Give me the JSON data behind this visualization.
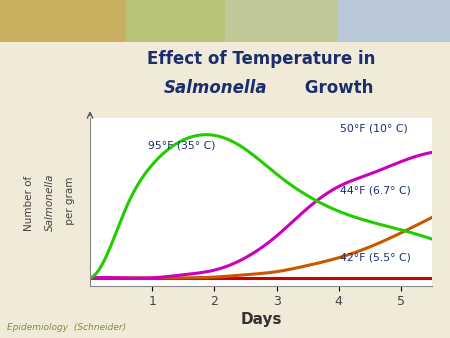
{
  "title_line1": "Effect of Temperature in",
  "title_line2_italic": "Salmonella",
  "title_line2_normal": " Growth",
  "xlabel": "Days",
  "background_color": "#f2ead8",
  "plot_bg": "#ffffff",
  "xticks": [
    1,
    2,
    3,
    4,
    5
  ],
  "labels": {
    "95F": "95°F (35° C)",
    "50F": "50°F (10° C)",
    "44F": "44°F (6.7° C)",
    "42F": "42°F (5.5° C)"
  },
  "label_color": "#1a2e6e",
  "curves": {
    "95F": {
      "color": "#22cc00",
      "x": [
        0.0,
        0.25,
        0.6,
        1.0,
        1.5,
        2.0,
        2.5,
        3.0,
        3.5,
        4.0,
        5.0,
        5.5
      ],
      "y": [
        0.05,
        0.18,
        0.52,
        0.78,
        0.94,
        0.97,
        0.88,
        0.72,
        0.58,
        0.48,
        0.36,
        0.3
      ]
    },
    "50F": {
      "color": "#cc00bb",
      "x": [
        0.0,
        0.5,
        1.0,
        1.5,
        2.0,
        2.5,
        3.0,
        3.5,
        4.0,
        4.5,
        5.0,
        5.5
      ],
      "y": [
        0.05,
        0.05,
        0.05,
        0.07,
        0.1,
        0.18,
        0.32,
        0.5,
        0.64,
        0.72,
        0.8,
        0.86
      ]
    },
    "44F": {
      "color": "#cc5500",
      "x": [
        0.0,
        0.5,
        1.0,
        1.5,
        2.0,
        2.5,
        3.0,
        3.5,
        4.0,
        4.5,
        5.0,
        5.5
      ],
      "y": [
        0.05,
        0.05,
        0.05,
        0.05,
        0.055,
        0.07,
        0.09,
        0.13,
        0.18,
        0.25,
        0.34,
        0.44
      ]
    },
    "42F": {
      "color": "#cc0000",
      "x": [
        0.0,
        5.5
      ],
      "y": [
        0.05,
        0.05
      ]
    }
  },
  "header_colors": [
    "#c8b870",
    "#b8c88a",
    "#c8d0b0",
    "#b0c0d0"
  ],
  "footer_color": "#d8c888",
  "footer_text": "Epidemiology  (Schneider)",
  "footer_text_color": "#888844"
}
